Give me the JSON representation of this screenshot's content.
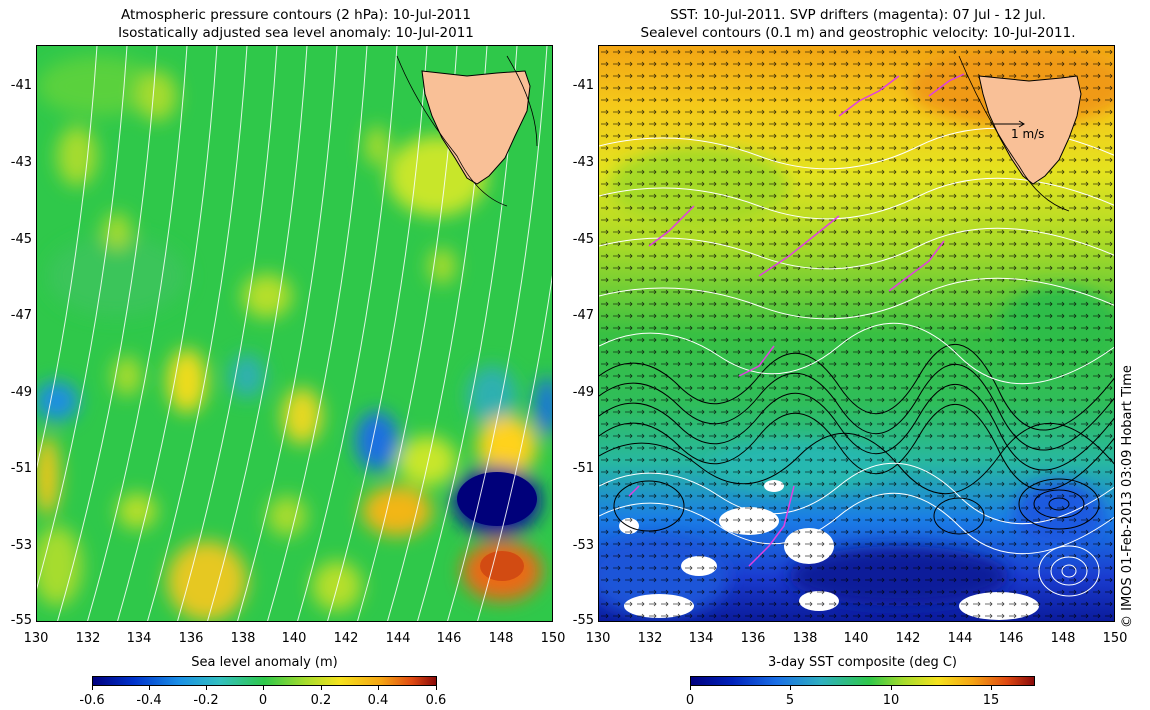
{
  "left_panel": {
    "title_line1": "Atmospheric pressure contours (2 hPa): 10-Jul-2011",
    "title_line2": "Isostatically adjusted sea level anomaly: 10-Jul-2011",
    "colorbar_title": "Sea level anomaly (m)",
    "colorbar_ticks": [
      "-0.6",
      "-0.4",
      "-0.2",
      "0",
      "0.2",
      "0.4",
      "0.6"
    ]
  },
  "right_panel": {
    "title_line1": "SST: 10-Jul-2011. SVP drifters (magenta): 07 Jul - 12 Jul.",
    "title_line2": "Sealevel contours (0.1 m) and geostrophic velocity: 10-Jul-2011.",
    "colorbar_title": "3-day SST composite (deg C)",
    "colorbar_ticks": [
      "0",
      "5",
      "10",
      "15"
    ],
    "velocity_scale_label": "1 m/s"
  },
  "axes": {
    "lat_labels": [
      "-41",
      "-43",
      "-45",
      "-47",
      "-49",
      "-51",
      "-53",
      "-55"
    ],
    "lon_labels": [
      "130",
      "132",
      "134",
      "136",
      "138",
      "140",
      "142",
      "144",
      "146",
      "148",
      "150"
    ]
  },
  "credit": "© IMOS 01-Feb-2013 03:09 Hobart Time",
  "colors": {
    "land": "#f9c097",
    "contour_white": "#ffffff",
    "drifter": "#e040e0"
  }
}
